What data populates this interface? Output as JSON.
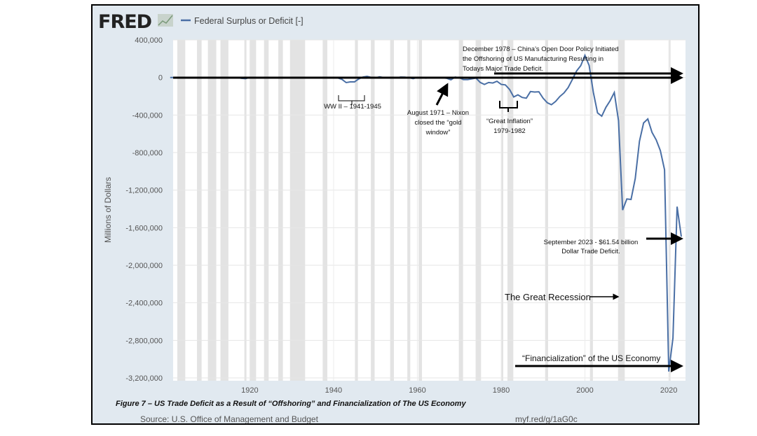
{
  "header": {
    "logo": "FRED",
    "legend_label": "Federal Surplus or Deficit [-]"
  },
  "footer": {
    "source": "Source: U.S. Office of Management and Budget",
    "link": "myf.red/g/1aG0c"
  },
  "caption": "Figure 7 – US Trade Deficit as a Result of “Offshoring” and Financialization of The US Economy",
  "colors": {
    "series": "#4a6fa5",
    "recession": "#e3e3e3",
    "background": "#e1e9f0"
  },
  "annotations": {
    "china": [
      "December 1978 – China’s Open Door Policy Initiated",
      "the Offshoring of US Manufacturing Resulting in",
      "Todays Major Trade Deficit."
    ],
    "ww2": "WW II – 1941-1945",
    "nixon": [
      "August 1971 – Nixon",
      "closed the “gold",
      "window”"
    ],
    "inflation": [
      "“Great Inflation”",
      "1979-1982"
    ],
    "sept2023": [
      "September 2023 - $61.54 billion",
      "Dollar Trade Deficit."
    ],
    "great_recession": "The Great Recession",
    "financialization": "“Financialization” of the US Economy"
  },
  "chart_data": {
    "type": "line",
    "title": "Federal Surplus or Deficit [-]",
    "xlabel": "",
    "ylabel": "Millions of Dollars",
    "xlim": [
      1901.7,
      2024
    ],
    "ylim": [
      -3200000,
      400000
    ],
    "grid": true,
    "yticks": [
      400000,
      0,
      -400000,
      -800000,
      -1200000,
      -1600000,
      -2000000,
      -2400000,
      -2800000,
      -3200000
    ],
    "ytick_labels": [
      "400,000",
      "0",
      "-400,000",
      "-800,000",
      "-1,200,000",
      "-1,600,000",
      "-2,000,000",
      "-2,400,000",
      "-2,800,000",
      "-3,200,000"
    ],
    "xticks": [
      1920,
      1940,
      1960,
      1980,
      2000,
      2020
    ],
    "xtick_labels": [
      "1920",
      "1940",
      "1960",
      "1980",
      "2000",
      "2020"
    ],
    "recessions": [
      [
        1902.7,
        1904.6
      ],
      [
        1907.4,
        1908.5
      ],
      [
        1910,
        1912
      ],
      [
        1913,
        1914.9
      ],
      [
        1918.7,
        1919.2
      ],
      [
        1920,
        1921.5
      ],
      [
        1923.4,
        1924.5
      ],
      [
        1926.8,
        1927.9
      ],
      [
        1929.6,
        1933.2
      ],
      [
        1937.4,
        1938.5
      ],
      [
        1945.1,
        1945.8
      ],
      [
        1948.9,
        1949.8
      ],
      [
        1953.5,
        1954.4
      ],
      [
        1957.6,
        1958.3
      ],
      [
        1960.3,
        1961.1
      ],
      [
        1969.9,
        1970.9
      ],
      [
        1973.9,
        1975.2
      ],
      [
        1980,
        1980.5
      ],
      [
        1981.5,
        1982.9
      ],
      [
        1990.5,
        1991.2
      ],
      [
        2001.2,
        2001.9
      ],
      [
        2007.9,
        2009.5
      ],
      [
        2020.1,
        2020.3
      ]
    ],
    "series": [
      {
        "name": "Federal Surplus or Deficit [-]",
        "x": [
          1901,
          1910,
          1917,
          1918,
          1919,
          1920,
          1925,
          1930,
          1932,
          1934,
          1936,
          1938,
          1940,
          1941,
          1942,
          1943,
          1944,
          1945,
          1946,
          1947,
          1948,
          1949,
          1950,
          1951,
          1952,
          1953,
          1954,
          1955,
          1956,
          1957,
          1958,
          1959,
          1960,
          1961,
          1962,
          1963,
          1964,
          1965,
          1966,
          1967,
          1968,
          1969,
          1970,
          1971,
          1972,
          1973,
          1974,
          1975,
          1976,
          1977,
          1978,
          1979,
          1980,
          1981,
          1982,
          1983,
          1984,
          1985,
          1986,
          1987,
          1988,
          1989,
          1990,
          1991,
          1992,
          1993,
          1994,
          1995,
          1996,
          1997,
          1998,
          1999,
          2000,
          2001,
          2002,
          2003,
          2004,
          2005,
          2006,
          2007,
          2008,
          2009,
          2010,
          2011,
          2012,
          2013,
          2014,
          2015,
          2016,
          2017,
          2018,
          2019,
          2020,
          2021,
          2022,
          2023
        ],
        "values": [
          0,
          0,
          -1000,
          -9000,
          -13000,
          300,
          700,
          700,
          -2700,
          -3600,
          -4400,
          -100,
          -2900,
          -4941,
          -20503,
          -54554,
          -47557,
          -47553,
          -15936,
          4018,
          11796,
          580,
          -3119,
          6102,
          -1519,
          -6493,
          -1154,
          -2993,
          3947,
          3412,
          -2769,
          -12849,
          301,
          -3335,
          -7146,
          -4756,
          -5915,
          -1411,
          -3698,
          -8643,
          -25161,
          3242,
          -2842,
          -23033,
          -23373,
          -14908,
          -6135,
          -53242,
          -73732,
          -53659,
          -59185,
          -40726,
          -73830,
          -78968,
          -127977,
          -207802,
          -185367,
          -212308,
          -221227,
          -149730,
          -155178,
          -152639,
          -221036,
          -269238,
          -290321,
          -255051,
          -203186,
          -163952,
          -107431,
          -21884,
          69270,
          125610,
          236241,
          128236,
          -157758,
          -377585,
          -412727,
          -318346,
          -248181,
          -160701,
          -458553,
          -1412688,
          -1294373,
          -1299599,
          -1076573,
          -679775,
          -484602,
          -441960,
          -584651,
          -665446,
          -779137,
          -983588,
          -3131917,
          -2775297,
          -1375927,
          -1695000
        ]
      }
    ]
  }
}
